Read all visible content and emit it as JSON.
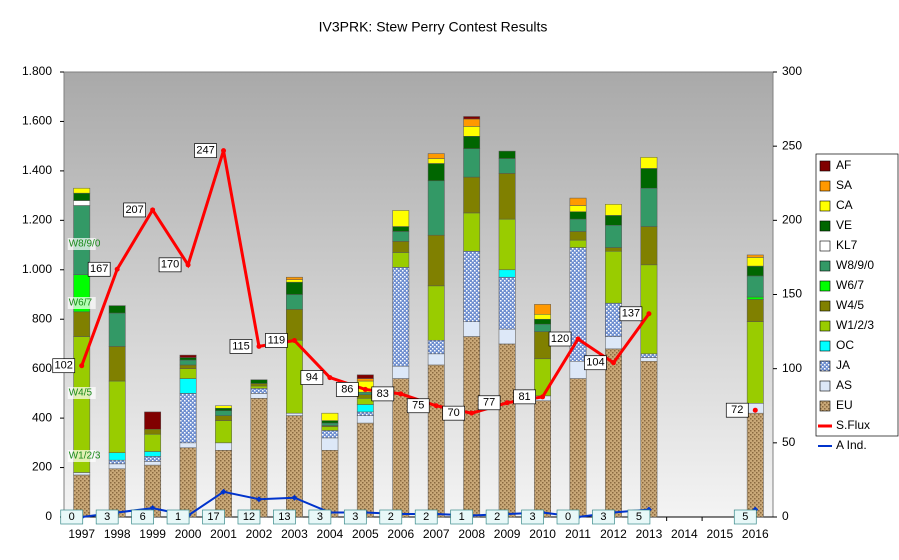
{
  "chart_data": {
    "type": "bar",
    "title": "IV3PRK: Stew Perry Contest Results",
    "categories": [
      "1997",
      "1998",
      "1999",
      "2000",
      "2001",
      "2002",
      "2003",
      "2004",
      "2005",
      "2006",
      "2007",
      "2008",
      "2009",
      "2010",
      "2011",
      "2012",
      "2013",
      "2014",
      "2015",
      "2016"
    ],
    "series": [
      {
        "name": "EU",
        "color": "#c9a878",
        "values": [
          170,
          195,
          210,
          280,
          270,
          480,
          410,
          270,
          380,
          560,
          615,
          730,
          700,
          470,
          560,
          680,
          630,
          null,
          null,
          420
        ]
      },
      {
        "name": "AS",
        "color": "#dde8f8",
        "values": [
          10,
          20,
          15,
          20,
          30,
          20,
          10,
          50,
          30,
          50,
          45,
          60,
          60,
          20,
          70,
          50,
          15,
          null,
          null,
          40
        ]
      },
      {
        "name": "JA",
        "color": "#6f8fd0",
        "values": [
          0,
          15,
          20,
          200,
          0,
          20,
          0,
          30,
          15,
          400,
          55,
          285,
          210,
          0,
          460,
          135,
          15,
          null,
          null,
          0
        ]
      },
      {
        "name": "OC",
        "color": "#00ffff",
        "values": [
          0,
          30,
          20,
          60,
          0,
          0,
          0,
          0,
          30,
          0,
          0,
          0,
          30,
          0,
          0,
          0,
          0,
          null,
          null,
          0
        ]
      },
      {
        "name": "W1/2/3",
        "color": "#99cc00",
        "values": [
          550,
          290,
          70,
          40,
          90,
          10,
          295,
          15,
          25,
          60,
          220,
          155,
          205,
          150,
          30,
          210,
          360,
          null,
          null,
          330
        ]
      },
      {
        "name": "W4/5",
        "color": "#808000",
        "values": [
          100,
          140,
          20,
          15,
          20,
          10,
          125,
          5,
          15,
          45,
          205,
          145,
          185,
          110,
          35,
          15,
          155,
          null,
          null,
          90
        ]
      },
      {
        "name": "W6/7",
        "color": "#00ff00",
        "values": [
          150,
          0,
          0,
          0,
          0,
          0,
          0,
          0,
          0,
          0,
          0,
          0,
          0,
          0,
          0,
          0,
          0,
          null,
          null,
          10
        ]
      },
      {
        "name": "W8/9/0",
        "color": "#339966",
        "values": [
          280,
          135,
          0,
          20,
          20,
          0,
          60,
          10,
          10,
          40,
          220,
          115,
          60,
          30,
          50,
          90,
          155,
          null,
          null,
          85
        ]
      },
      {
        "name": "KL7",
        "color": "#ffffff",
        "values": [
          20,
          0,
          0,
          0,
          0,
          0,
          0,
          0,
          0,
          0,
          0,
          0,
          0,
          0,
          0,
          0,
          0,
          null,
          null,
          0
        ]
      },
      {
        "name": "VE",
        "color": "#006600",
        "values": [
          30,
          30,
          0,
          10,
          10,
          15,
          50,
          10,
          0,
          20,
          70,
          50,
          30,
          20,
          30,
          40,
          80,
          null,
          null,
          40
        ]
      },
      {
        "name": "CA",
        "color": "#ffff00",
        "values": [
          20,
          0,
          0,
          0,
          10,
          0,
          10,
          30,
          45,
          65,
          20,
          40,
          0,
          20,
          25,
          45,
          45,
          null,
          null,
          35
        ]
      },
      {
        "name": "SA",
        "color": "#ff9900",
        "values": [
          0,
          0,
          0,
          0,
          0,
          0,
          10,
          0,
          10,
          0,
          20,
          30,
          0,
          40,
          30,
          0,
          0,
          null,
          null,
          10
        ]
      },
      {
        "name": "AF",
        "color": "#800000",
        "values": [
          0,
          0,
          70,
          10,
          0,
          0,
          0,
          0,
          15,
          0,
          0,
          10,
          0,
          0,
          0,
          0,
          0,
          null,
          null,
          0
        ]
      }
    ],
    "lines": [
      {
        "name": "S.Flux",
        "color": "#ff0000",
        "axis": "y2",
        "values": [
          102,
          167,
          207,
          170,
          247,
          115,
          119,
          94,
          86,
          83,
          75,
          70,
          77,
          81,
          120,
          104,
          137,
          null,
          null,
          72
        ]
      },
      {
        "name": "A Ind.",
        "color": "#0033cc",
        "axis": "y2",
        "values": [
          0,
          3,
          6,
          1,
          17,
          12,
          13,
          3,
          3,
          2,
          2,
          1,
          2,
          3,
          0,
          3,
          5,
          null,
          null,
          5
        ]
      }
    ],
    "annotations": [
      "W8/9/0",
      "W6/7",
      "W4/5",
      "W1/2/3"
    ],
    "ylim": [
      0,
      1800
    ],
    "yticks": [
      0,
      200,
      400,
      600,
      800,
      {
        "value": 1000,
        "label": "1.000"
      },
      {
        "value": 1200,
        "label": "1.200"
      },
      {
        "value": 1400,
        "label": "1.400"
      },
      {
        "value": 1600,
        "label": "1.600"
      },
      {
        "value": 1800,
        "label": "1.800"
      }
    ],
    "y2lim": [
      0,
      300
    ],
    "y2ticks": [
      0,
      50,
      100,
      150,
      200,
      250,
      300
    ],
    "grid": false,
    "legend": "right"
  }
}
